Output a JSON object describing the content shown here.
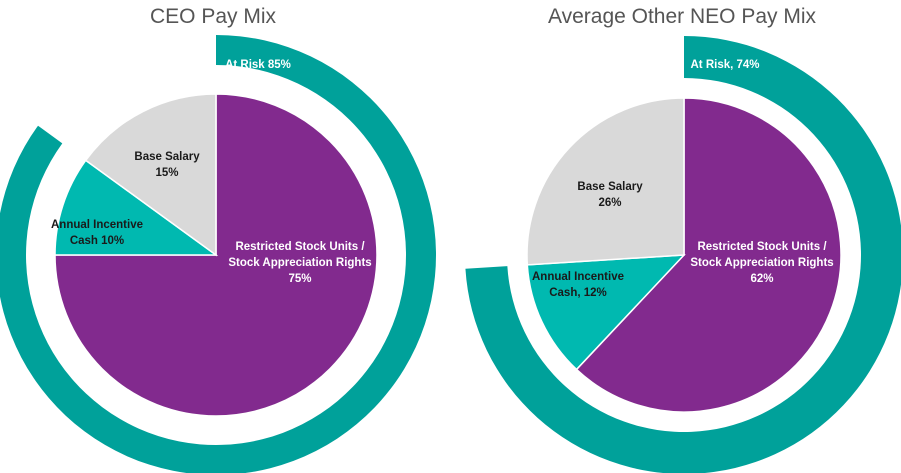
{
  "chart_data": [
    {
      "type": "pie",
      "title": "CEO Pay Mix",
      "slices": [
        {
          "label": "Restricted Stock Units /",
          "label2": "Stock Appreciation Rights",
          "value_label": "75%",
          "value": 75,
          "color": "#822A8E",
          "text": "light"
        },
        {
          "label": "Annual Incentive",
          "label2": "Cash 10%",
          "value_label": "",
          "value": 10,
          "color": "#00B9B0",
          "text": "dark"
        },
        {
          "label": "Base Salary",
          "label2": "",
          "value_label": "15%",
          "value": 15,
          "color": "#D9D9D9",
          "text": "dark"
        }
      ],
      "outer_ring": {
        "label": "At Risk 85%",
        "value": 85,
        "color": "#00A19A"
      }
    },
    {
      "type": "pie",
      "title": "Average Other NEO Pay Mix",
      "slices": [
        {
          "label": "Restricted Stock Units /",
          "label2": "Stock Appreciation Rights",
          "value_label": "62%",
          "value": 62,
          "color": "#822A8E",
          "text": "light"
        },
        {
          "label": "Annual Incentive",
          "label2": "Cash, 12%",
          "value_label": "",
          "value": 12,
          "color": "#00B9B0",
          "text": "dark"
        },
        {
          "label": "Base Salary",
          "label2": "",
          "value_label": "26%",
          "value": 26,
          "color": "#D9D9D9",
          "text": "dark"
        }
      ],
      "outer_ring": {
        "label": "At Risk, 74%",
        "value": 74,
        "color": "#00A19A"
      }
    }
  ]
}
